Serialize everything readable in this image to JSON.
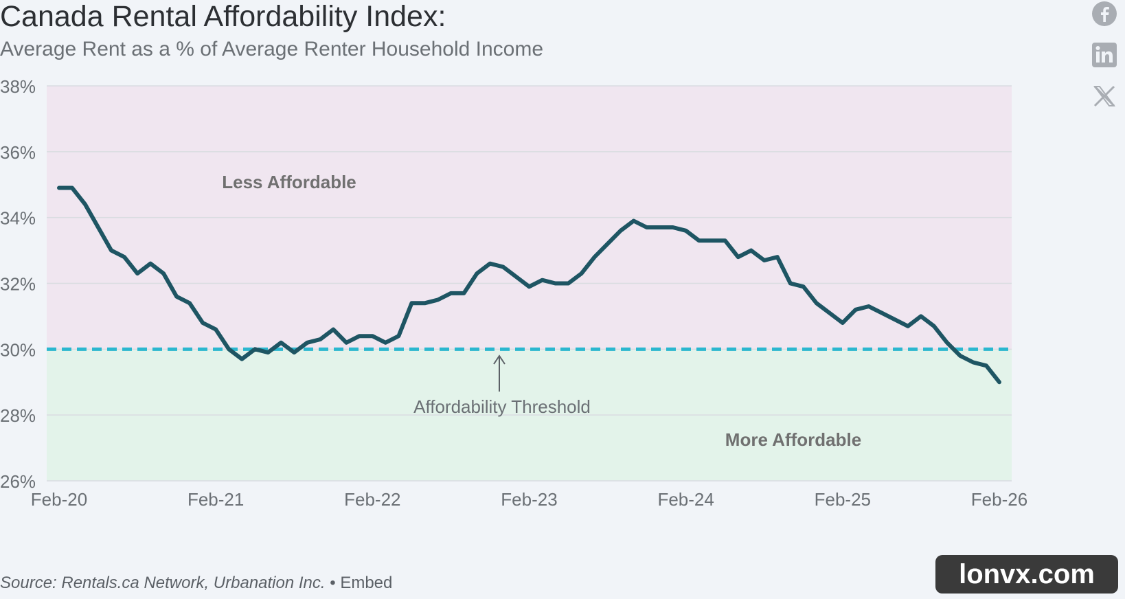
{
  "title": "Canada Rental Affordability Index:",
  "subtitle": "Average Rent as a % of Average Renter Household Income",
  "source": {
    "text": "Source: Rentals.ca Network, Urbanation Inc.",
    "separator": "•",
    "embed_label": "Embed"
  },
  "share": {
    "icons": [
      "facebook-icon",
      "linkedin-icon",
      "x-icon"
    ]
  },
  "brand_badge": "lonvx.com",
  "colors": {
    "line": "#1e5563",
    "threshold": "#2bb7cf",
    "less_affordable_zone": "#f0e6f0",
    "more_affordable_zone": "#e3f3ea",
    "grid": "#d9dce1"
  },
  "chart_data": {
    "type": "line",
    "title": "Canada Rental Affordability Index:",
    "subtitle": "Average Rent as a % of Average Renter Household Income",
    "xlabel": "",
    "ylabel": "",
    "x_ticks": [
      "Feb-20",
      "Feb-21",
      "Feb-22",
      "Feb-23",
      "Feb-24",
      "Feb-25",
      "Feb-26"
    ],
    "ylim": [
      26,
      38
    ],
    "y_ticks": [
      "26%",
      "28%",
      "30%",
      "32%",
      "34%",
      "36%",
      "38%"
    ],
    "y_tick_values": [
      26,
      28,
      30,
      32,
      34,
      36,
      38
    ],
    "grid": true,
    "threshold": {
      "value": 30,
      "label": "Affordability Threshold"
    },
    "zones": [
      {
        "label": "Less Affordable",
        "from": 30,
        "to": 38
      },
      {
        "label": "More Affordable",
        "from": 26,
        "to": 30
      }
    ],
    "series": [
      {
        "values": [
          34.9,
          34.9,
          34.4,
          33.7,
          33.0,
          32.8,
          32.3,
          32.6,
          32.3,
          31.6,
          31.4,
          30.8,
          30.6,
          30.0,
          29.7,
          30.0,
          29.9,
          30.2,
          29.9,
          30.2,
          30.3,
          30.6,
          30.2,
          30.4,
          30.4,
          30.2,
          30.4,
          31.4,
          31.4,
          31.5,
          31.7,
          31.7,
          32.3,
          32.6,
          32.5,
          32.2,
          31.9,
          32.1,
          32.0,
          32.0,
          32.3,
          32.8,
          33.2,
          33.6,
          33.9,
          33.7,
          33.7,
          33.7,
          33.6,
          33.3,
          33.3,
          33.3,
          32.8,
          33.0,
          32.7,
          32.8,
          32.0,
          31.9,
          31.4,
          31.1,
          30.8,
          31.2,
          31.3,
          31.1,
          30.9,
          30.7,
          31.0,
          30.7,
          30.2,
          29.8,
          29.6,
          29.5,
          29.0
        ]
      }
    ]
  }
}
